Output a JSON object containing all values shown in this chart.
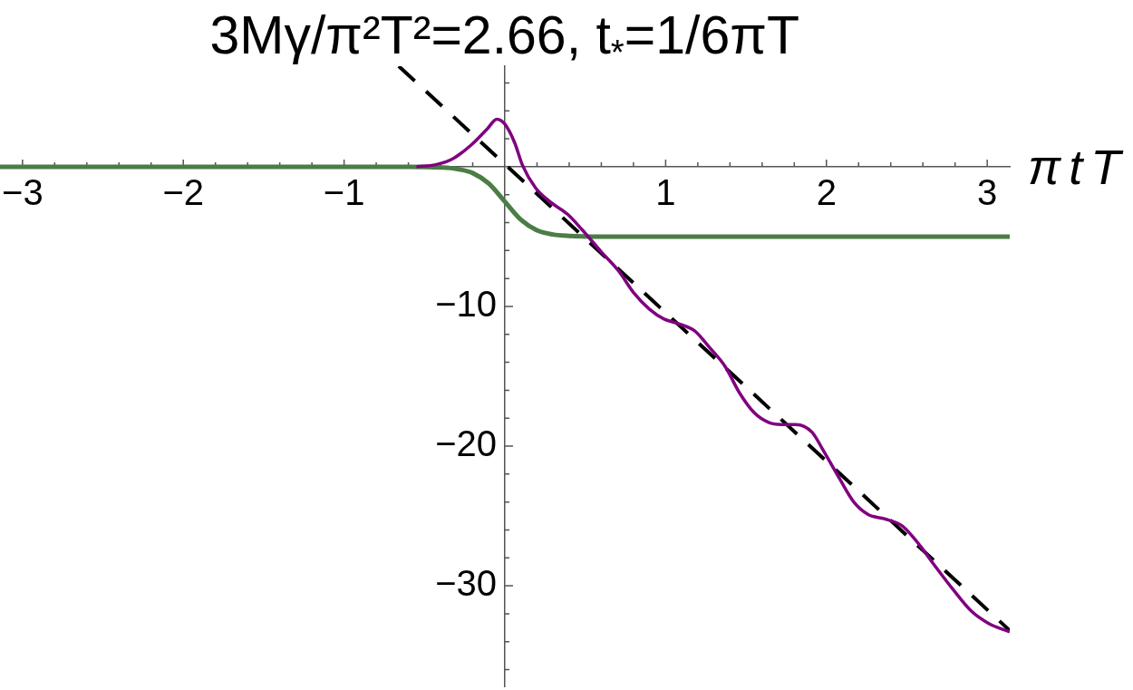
{
  "chart_data": {
    "type": "line",
    "title": "3Mγ/π²T²=2.66, t$_{*}$=1/6πT",
    "xlabel": "π t T",
    "xlim": [
      -3.14,
      3.14
    ],
    "ylim": [
      -37.2,
      7.2
    ],
    "xticks": [
      {
        "value": -3,
        "label": "−3"
      },
      {
        "value": -2.8,
        "label": null
      },
      {
        "value": -2.6,
        "label": null
      },
      {
        "value": -2.4,
        "label": null
      },
      {
        "value": -2.2,
        "label": null
      },
      {
        "value": -2,
        "label": "−2"
      },
      {
        "value": -1.8,
        "label": null
      },
      {
        "value": -1.6,
        "label": null
      },
      {
        "value": -1.4,
        "label": null
      },
      {
        "value": -1.2,
        "label": null
      },
      {
        "value": -1,
        "label": "−1"
      },
      {
        "value": -0.8,
        "label": null
      },
      {
        "value": -0.6,
        "label": null
      },
      {
        "value": -0.4,
        "label": null
      },
      {
        "value": -0.2,
        "label": null
      },
      {
        "value": 0.2,
        "label": null
      },
      {
        "value": 0.4,
        "label": null
      },
      {
        "value": 0.6,
        "label": null
      },
      {
        "value": 0.8,
        "label": null
      },
      1,
      {
        "value": 1.2,
        "label": null
      },
      {
        "value": 1.4,
        "label": null
      },
      {
        "value": 1.6,
        "label": null
      },
      {
        "value": 1.8,
        "label": null
      },
      2,
      {
        "value": 2.2,
        "label": null
      },
      {
        "value": 2.4,
        "label": null
      },
      {
        "value": 2.6,
        "label": null
      },
      {
        "value": 2.8,
        "label": null
      },
      3
    ],
    "yticks": [
      {
        "value": 6,
        "label": null
      },
      {
        "value": 4,
        "label": null
      },
      {
        "value": 2,
        "label": null
      },
      {
        "value": -2,
        "label": null
      },
      {
        "value": -4,
        "label": null
      },
      {
        "value": -6,
        "label": null
      },
      {
        "value": -8,
        "label": null
      },
      {
        "value": -10,
        "label": "−10"
      },
      {
        "value": -12,
        "label": null
      },
      {
        "value": -14,
        "label": null
      },
      {
        "value": -16,
        "label": null
      },
      {
        "value": -18,
        "label": null
      },
      {
        "value": -20,
        "label": "−20"
      },
      {
        "value": -22,
        "label": null
      },
      {
        "value": -24,
        "label": null
      },
      {
        "value": -26,
        "label": null
      },
      {
        "value": -28,
        "label": null
      },
      {
        "value": -30,
        "label": "−30"
      },
      {
        "value": -32,
        "label": null
      },
      {
        "value": -34,
        "label": null
      },
      {
        "value": -36,
        "label": null
      }
    ],
    "grid": false,
    "legend": false,
    "series": [
      {
        "color": "#4b7d45",
        "x": [
          -3.14,
          -0.6,
          -0.4,
          -0.3,
          -0.2,
          -0.1,
          0,
          0.1,
          0.2,
          0.3,
          0.4,
          0.6,
          3.14
        ],
        "values": [
          0,
          0,
          -0.05,
          -0.15,
          -0.45,
          -1.2,
          -2.5,
          -3.8,
          -4.55,
          -4.85,
          -4.95,
          -5.0,
          -5.0
        ]
      },
      {
        "color": "#000000",
        "line_style": "dashed",
        "x": [
          -0.66,
          3.14
        ],
        "values": [
          7.2,
          -33.2
        ]
      },
      {
        "color": "#800080",
        "x": [
          -0.55,
          -0.43,
          -0.32,
          -0.21,
          -0.11,
          -0.05,
          0,
          0.06,
          0.11,
          0.19,
          0.28,
          0.39,
          0.48,
          0.6,
          0.71,
          0.8,
          0.9,
          0.99,
          1.07,
          1.18,
          1.27,
          1.37,
          1.46,
          1.55,
          1.64,
          1.72,
          1.81,
          1.91,
          1.98,
          2.08,
          2.17,
          2.26,
          2.36,
          2.47,
          2.56,
          2.67,
          2.79,
          2.9,
          3.01,
          3.14
        ],
        "values": [
          0,
          0.15,
          0.6,
          1.55,
          2.7,
          3.4,
          3.05,
          1.75,
          0.1,
          -1.5,
          -2.5,
          -3.4,
          -4.5,
          -6.1,
          -7.5,
          -9.0,
          -10.2,
          -10.9,
          -11.2,
          -11.75,
          -12.9,
          -14.3,
          -16.2,
          -17.6,
          -18.3,
          -18.45,
          -18.45,
          -19.0,
          -20.3,
          -22.3,
          -24.0,
          -24.9,
          -25.2,
          -25.7,
          -26.8,
          -28.5,
          -30.3,
          -31.8,
          -32.7,
          -33.3
        ]
      }
    ]
  }
}
